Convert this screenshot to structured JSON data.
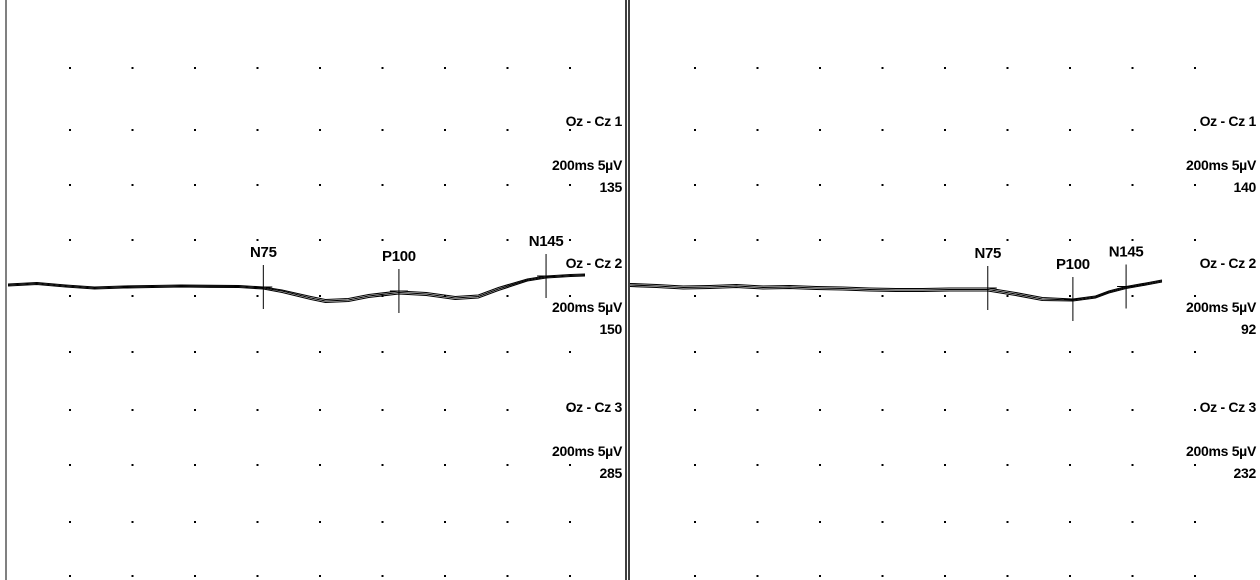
{
  "colors": {
    "background": "#ffffff",
    "trace": "#000000",
    "dot": "#000000"
  },
  "chart_data": [
    {
      "type": "line",
      "title": "",
      "xlim": [
        0,
        200
      ],
      "xunit": "ms",
      "yunit": "µV",
      "channels": [
        {
          "name": "Oz - Cz 1",
          "scale_label": "200ms 5µV",
          "count_label": "135"
        },
        {
          "name": "Oz - Cz 2",
          "scale_label": "200ms 5µV",
          "count_label": "150"
        },
        {
          "name": "Oz - Cz 3",
          "scale_label": "200ms 5µV",
          "count_label": "285"
        }
      ],
      "markers": [
        {
          "label": "N75",
          "x": 88.5
        },
        {
          "label": "P100",
          "x": 135.5
        },
        {
          "label": "N145",
          "x": 186.5
        }
      ],
      "series": [
        {
          "x": [
            0,
            10,
            20,
            30,
            40,
            50,
            60,
            70,
            80,
            88.5,
            95,
            105,
            110,
            118,
            125,
            135.5,
            145,
            155,
            163,
            170,
            180,
            186.5,
            195,
            200
          ],
          "y": [
            0,
            0.3,
            -0.2,
            -0.6,
            -0.4,
            -0.3,
            -0.2,
            -0.25,
            -0.3,
            -0.6,
            -1.2,
            -2.6,
            -3.2,
            -3.0,
            -2.2,
            -1.5,
            -1.8,
            -2.6,
            -2.3,
            -0.8,
            1.0,
            1.6,
            1.9,
            2.0
          ]
        },
        {
          "x": [
            0,
            10,
            20,
            30,
            40,
            50,
            60,
            70,
            80,
            88.5,
            95,
            105,
            110,
            118,
            125,
            135.5,
            145,
            155,
            163,
            170,
            180,
            186.5,
            195,
            200
          ],
          "y": [
            0.2,
            0.5,
            0,
            -0.4,
            -0.2,
            -0.1,
            0,
            -0.05,
            -0.1,
            -0.4,
            -1.0,
            -2.3,
            -2.9,
            -2.7,
            -1.9,
            -1.2,
            -1.5,
            -2.3,
            -2.0,
            -0.5,
            1.2,
            1.8,
            2.1,
            2.2
          ]
        },
        {
          "x": [
            0,
            10,
            20,
            30,
            40,
            50,
            60,
            70,
            80,
            88.5,
            95,
            105,
            110,
            118,
            125,
            135.5,
            145,
            155,
            163,
            170,
            180,
            186.5,
            195,
            200
          ],
          "y": [
            -0.2,
            0.1,
            -0.4,
            -0.8,
            -0.6,
            -0.5,
            -0.4,
            -0.45,
            -0.5,
            -0.8,
            -1.5,
            -2.9,
            -3.5,
            -3.3,
            -2.5,
            -1.8,
            -2.1,
            -2.9,
            -2.6,
            -1.1,
            0.8,
            1.4,
            1.7,
            1.8
          ]
        }
      ]
    },
    {
      "type": "line",
      "title": "",
      "xlim": [
        0,
        200
      ],
      "xunit": "ms",
      "yunit": "µV",
      "channels": [
        {
          "name": "Oz - Cz 1",
          "scale_label": "200ms 5µV",
          "count_label": "140"
        },
        {
          "name": "Oz - Cz 2",
          "scale_label": "200ms 5µV",
          "count_label": "92"
        },
        {
          "name": "Oz - Cz 3",
          "scale_label": "200ms 5µV",
          "count_label": "232"
        }
      ],
      "markers": [
        {
          "label": "N75",
          "x": 134.5
        },
        {
          "label": "P100",
          "x": 166.5
        },
        {
          "label": "N145",
          "x": 186.5
        }
      ],
      "series": [
        {
          "x": [
            0,
            10,
            20,
            30,
            40,
            50,
            60,
            70,
            80,
            90,
            100,
            110,
            120,
            134.5,
            145,
            155,
            166.5,
            175,
            180,
            186.5,
            195,
            200
          ],
          "y": [
            0,
            -0.2,
            -0.5,
            -0.4,
            -0.2,
            -0.5,
            -0.4,
            -0.6,
            -0.7,
            -0.9,
            -1.0,
            -1.0,
            -0.9,
            -0.9,
            -1.8,
            -2.8,
            -3.0,
            -2.4,
            -1.4,
            -0.5,
            0.3,
            0.8
          ]
        },
        {
          "x": [
            0,
            10,
            20,
            30,
            40,
            50,
            60,
            70,
            80,
            90,
            100,
            110,
            120,
            134.5,
            145,
            155,
            166.5,
            175,
            180,
            186.5,
            195,
            200
          ],
          "y": [
            0.3,
            0.1,
            -0.2,
            -0.1,
            0.1,
            -0.2,
            -0.1,
            -0.3,
            -0.4,
            -0.6,
            -0.7,
            -0.7,
            -0.6,
            -0.6,
            -1.5,
            -2.5,
            -2.8,
            -2.2,
            -1.2,
            -0.3,
            0.5,
            1.0
          ]
        },
        {
          "x": [
            0,
            10,
            20,
            30,
            40,
            50,
            60,
            70,
            80,
            90,
            100,
            110,
            120,
            134.5,
            145,
            155,
            166.5,
            175,
            180,
            186.5,
            195,
            200
          ],
          "y": [
            -0.3,
            -0.5,
            -0.8,
            -0.7,
            -0.5,
            -0.8,
            -0.7,
            -0.9,
            -1.0,
            -1.2,
            -1.3,
            -1.3,
            -1.2,
            -1.2,
            -2.1,
            -3.1,
            -3.2,
            -2.6,
            -1.6,
            -0.7,
            0.1,
            0.6
          ]
        }
      ]
    }
  ]
}
